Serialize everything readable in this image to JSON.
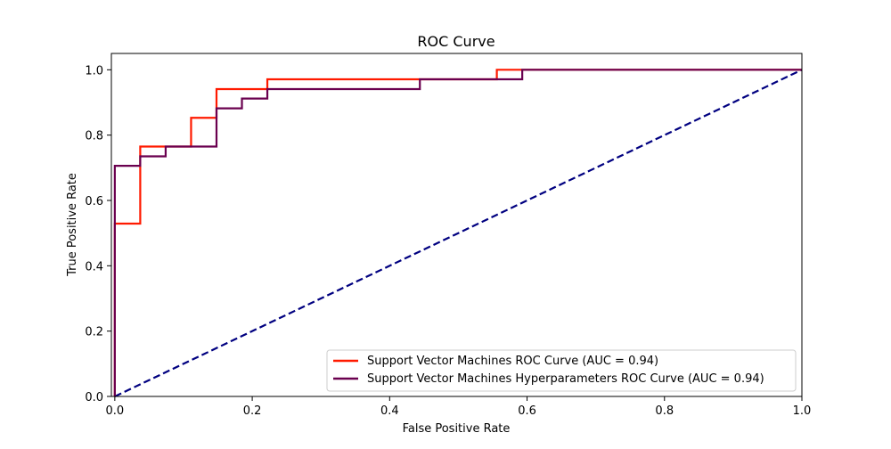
{
  "chart_data": {
    "type": "line",
    "title": "ROC Curve",
    "xlabel": "False Positive Rate",
    "ylabel": "True Positive Rate",
    "xlim": [
      -0.005,
      1.0
    ],
    "ylim": [
      0,
      1.05
    ],
    "xticks": [
      0.0,
      0.2,
      0.4,
      0.6,
      0.8,
      1.0
    ],
    "yticks": [
      0.0,
      0.2,
      0.4,
      0.6,
      0.8,
      1.0
    ],
    "tick_labels_x": [
      "0.0",
      "0.2",
      "0.4",
      "0.6",
      "0.8",
      "1.0"
    ],
    "tick_labels_y": [
      "0.0",
      "0.2",
      "0.4",
      "0.6",
      "0.8",
      "1.0"
    ],
    "grid": false,
    "legend_position": "lower-right",
    "series": [
      {
        "name": "Support Vector Machines ROC Curve (AUC = 0.94)",
        "color": "#ff1a00",
        "style": "solid",
        "x": [
          0.0,
          0.0,
          0.037,
          0.037,
          0.111,
          0.111,
          0.148,
          0.148,
          0.222,
          0.222,
          0.556,
          0.556,
          1.0
        ],
        "y": [
          0.0,
          0.529,
          0.529,
          0.765,
          0.765,
          0.853,
          0.853,
          0.941,
          0.941,
          0.971,
          0.971,
          1.0,
          1.0
        ]
      },
      {
        "name": "Support Vector Machines Hyperparameters ROC Curve (AUC = 0.94)",
        "color": "#6a004f",
        "style": "solid",
        "x": [
          0.0,
          0.0,
          0.037,
          0.037,
          0.074,
          0.074,
          0.148,
          0.148,
          0.185,
          0.185,
          0.222,
          0.222,
          0.444,
          0.444,
          0.593,
          0.593,
          1.0
        ],
        "y": [
          0.0,
          0.706,
          0.706,
          0.735,
          0.735,
          0.765,
          0.765,
          0.882,
          0.882,
          0.912,
          0.912,
          0.941,
          0.941,
          0.971,
          0.971,
          1.0,
          1.0
        ]
      },
      {
        "name": "",
        "color": "#000080",
        "style": "dashed",
        "x": [
          0.0,
          1.0
        ],
        "y": [
          0.0,
          1.0
        ]
      }
    ]
  }
}
